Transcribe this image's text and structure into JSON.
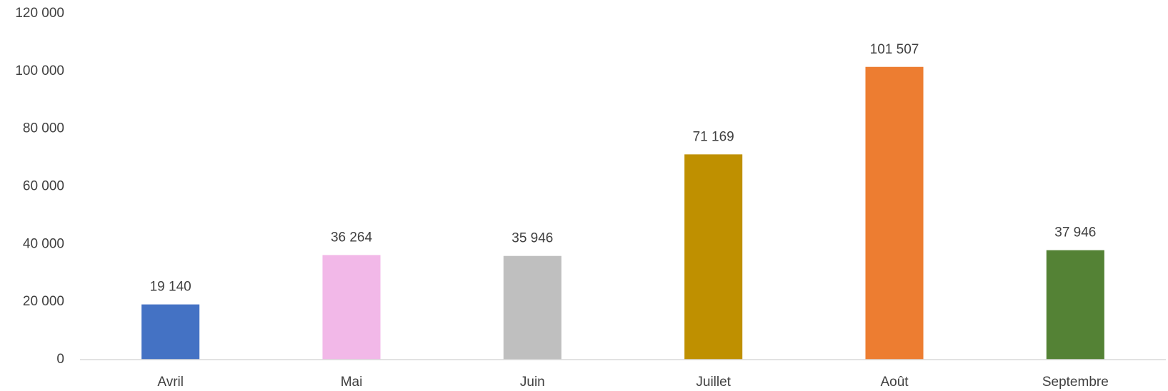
{
  "chart_data": {
    "type": "bar",
    "categories": [
      "Avril",
      "Mai",
      "Juin",
      "Juillet",
      "Août",
      "Septembre"
    ],
    "values": [
      19140,
      36264,
      35946,
      71169,
      101507,
      37946
    ],
    "value_labels": [
      "19 140",
      "36 264",
      "35 946",
      "71 169",
      "101 507",
      "37 946"
    ],
    "colors": [
      "#4472c4",
      "#f2b8e8",
      "#bfbfbf",
      "#bf9000",
      "#ed7d31",
      "#548235"
    ],
    "ylim": [
      0,
      120000
    ],
    "yticks": [
      0,
      {
        "value": 20000,
        "label": "20 000"
      },
      {
        "value": 40000,
        "label": "40 000"
      },
      {
        "value": 60000,
        "label": "60 000"
      },
      {
        "value": 80000,
        "label": "80 000"
      },
      {
        "value": 100000,
        "label": "100 000"
      },
      {
        "value": 120000,
        "label": "120 000"
      }
    ],
    "grid": false
  }
}
